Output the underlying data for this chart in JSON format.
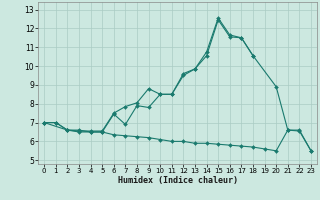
{
  "xlabel": "Humidex (Indice chaleur)",
  "bg_color": "#cce8e0",
  "line_color": "#1a7a6e",
  "grid_color": "#aaccc4",
  "xlim": [
    -0.5,
    23.5
  ],
  "ylim": [
    4.8,
    13.4
  ],
  "yticks": [
    5,
    6,
    7,
    8,
    9,
    10,
    11,
    12,
    13
  ],
  "xticks": [
    0,
    1,
    2,
    3,
    4,
    5,
    6,
    7,
    8,
    9,
    10,
    11,
    12,
    13,
    14,
    15,
    16,
    17,
    18,
    19,
    20,
    21,
    22,
    23
  ],
  "line1_x": [
    0,
    1,
    2,
    3,
    4,
    5,
    6,
    7,
    8,
    9,
    10,
    11,
    12,
    13,
    14,
    15,
    16,
    17,
    18
  ],
  "line1_y": [
    7.0,
    7.0,
    6.6,
    6.55,
    6.55,
    6.55,
    7.5,
    7.85,
    8.05,
    8.8,
    8.5,
    8.5,
    9.6,
    9.85,
    10.75,
    12.55,
    11.65,
    11.5,
    10.55
  ],
  "line2_x": [
    0,
    2,
    3,
    4,
    5,
    6,
    7,
    8,
    9,
    10,
    11,
    12,
    13,
    14,
    15,
    16,
    17,
    18,
    20,
    21,
    22,
    23
  ],
  "line2_y": [
    7.0,
    6.6,
    6.5,
    6.5,
    6.5,
    7.45,
    6.9,
    7.9,
    7.8,
    8.5,
    8.5,
    9.5,
    9.85,
    10.55,
    12.45,
    11.55,
    11.5,
    10.55,
    8.9,
    6.6,
    6.6,
    5.5
  ],
  "line3_x": [
    0,
    1,
    2,
    3,
    4,
    5,
    6,
    7,
    8,
    9,
    10,
    11,
    12,
    13,
    14,
    15,
    16,
    17,
    18,
    19,
    20,
    21,
    22,
    23
  ],
  "line3_y": [
    7.0,
    7.0,
    6.6,
    6.6,
    6.5,
    6.5,
    6.35,
    6.3,
    6.25,
    6.2,
    6.1,
    6.0,
    6.0,
    5.9,
    5.9,
    5.85,
    5.8,
    5.75,
    5.7,
    5.6,
    5.5,
    6.6,
    6.55,
    5.5
  ]
}
